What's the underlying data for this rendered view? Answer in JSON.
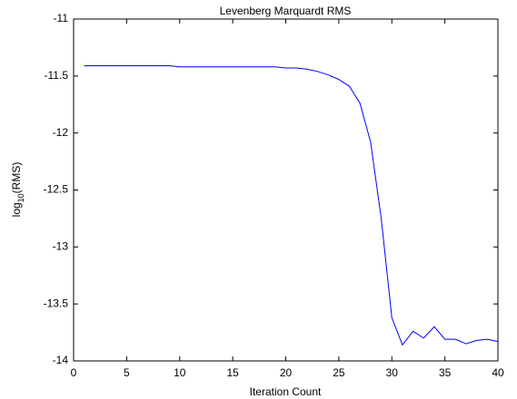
{
  "chart_data": {
    "type": "line",
    "title": "Levenberg Marquardt RMS",
    "xlabel": "Iteration Count",
    "ylabel": [
      "log",
      "10",
      "(RMS)"
    ],
    "x": [
      1,
      2,
      3,
      4,
      5,
      6,
      7,
      8,
      9,
      10,
      11,
      12,
      13,
      14,
      15,
      16,
      17,
      18,
      19,
      20,
      21,
      22,
      23,
      24,
      25,
      26,
      27,
      28,
      29,
      30,
      31,
      32,
      33,
      34,
      35,
      36,
      37,
      38,
      39,
      40
    ],
    "series": [
      {
        "name": "RMS",
        "color": "#0000ff",
        "values": [
          -11.41,
          -11.41,
          -11.41,
          -11.41,
          -11.41,
          -11.41,
          -11.41,
          -11.41,
          -11.41,
          -11.42,
          -11.42,
          -11.42,
          -11.42,
          -11.42,
          -11.42,
          -11.42,
          -11.42,
          -11.42,
          -11.42,
          -11.43,
          -11.43,
          -11.44,
          -11.46,
          -11.49,
          -11.53,
          -11.59,
          -11.74,
          -12.08,
          -12.75,
          -13.62,
          -13.86,
          -13.74,
          -13.8,
          -13.7,
          -13.81,
          -13.81,
          -13.85,
          -13.82,
          -13.81,
          -13.83
        ]
      }
    ],
    "xlim": [
      0,
      40
    ],
    "xticks": [
      0,
      5,
      10,
      15,
      20,
      25,
      30,
      35,
      40
    ],
    "ylim": [
      -14,
      -11
    ],
    "yticks": [
      -14,
      -13.5,
      -13,
      -12.5,
      -12,
      -11.5,
      -11
    ]
  }
}
